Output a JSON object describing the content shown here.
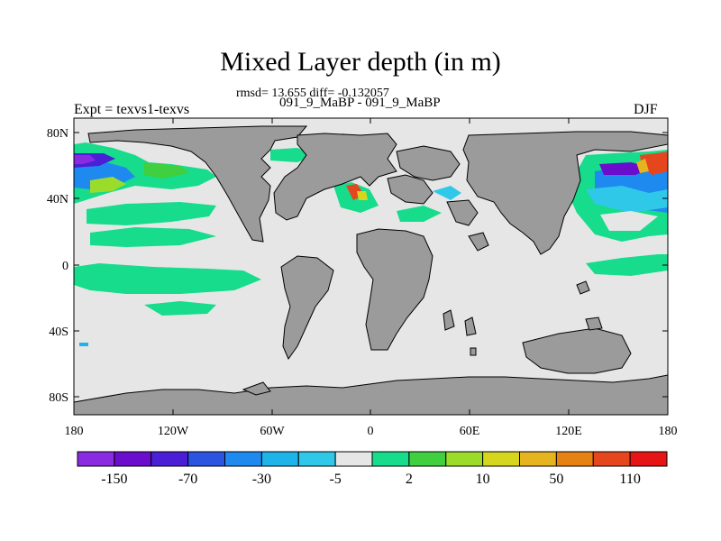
{
  "title": "Mixed Layer depth (in m)",
  "stats": "rmsd= 13.655 diff= -0.132057",
  "experiment_pair": "091_9_MaBP - 091_9_MaBP",
  "experiment_label": "Expt = texvs1-texvs",
  "season": "DJF",
  "lat_ticks": [
    "80N",
    "40N",
    "0",
    "40S",
    "80S"
  ],
  "lon_ticks": [
    "180",
    "120W",
    "60W",
    "0",
    "60E",
    "120E",
    "180"
  ],
  "colorbar": {
    "colors": [
      "#8a2be2",
      "#6a0dcc",
      "#4b1fd6",
      "#2b54e0",
      "#1e8af0",
      "#1eb4ea",
      "#30c8e8",
      "#e6e6e6",
      "#16dc8c",
      "#3fcf3f",
      "#9bdc2a",
      "#d6d61e",
      "#e6b41e",
      "#e68214",
      "#e6461e",
      "#e61414"
    ],
    "labels": [
      "-150",
      "-70",
      "-30",
      "-5",
      "2",
      "10",
      "50",
      "110"
    ]
  },
  "colors": {
    "land": "#9b9b9b",
    "ocean": "#e6e6e6",
    "coast": "#000000"
  }
}
